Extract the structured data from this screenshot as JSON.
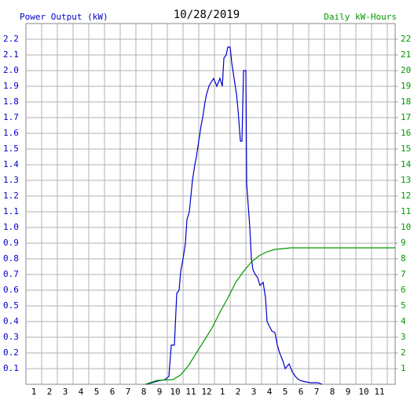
{
  "chart_data": {
    "type": "line",
    "title": "10/28/2019",
    "ylabel": "Power Output (kW)",
    "y2label": "Daily kW-Hours",
    "xlim": [
      0,
      23.5
    ],
    "ylim": [
      0,
      2.3
    ],
    "y2lim": [
      0,
      23
    ],
    "xticks": [
      1,
      2,
      3,
      4,
      5,
      6,
      7,
      8,
      9,
      10,
      11,
      12,
      {
        "value": 13,
        "label": "1"
      },
      {
        "value": 14,
        "label": "2"
      },
      {
        "value": 15,
        "label": "3"
      },
      {
        "value": 16,
        "label": "4"
      },
      {
        "value": 17,
        "label": "5"
      },
      {
        "value": 18,
        "label": "6"
      },
      {
        "value": 19,
        "label": "7"
      },
      {
        "value": 20,
        "label": "8"
      },
      {
        "value": 21,
        "label": "9"
      },
      {
        "value": 22,
        "label": "10"
      },
      {
        "value": 23,
        "label": "11"
      }
    ],
    "yticks": [
      0.1,
      0.2,
      0.3,
      0.4,
      0.5,
      0.6,
      0.7,
      0.8,
      0.9,
      {
        "value": 1,
        "label": "1.0"
      },
      1.1,
      1.2,
      1.3,
      1.4,
      1.5,
      1.6,
      1.7,
      1.8,
      1.9,
      {
        "value": 2,
        "label": "2.0"
      },
      2.1,
      2.2
    ],
    "y2ticks": [
      1,
      2,
      3,
      4,
      5,
      6,
      7,
      8,
      9,
      10,
      11,
      12,
      13,
      14,
      15,
      16,
      17,
      18,
      19,
      20,
      21,
      22
    ],
    "grid": true,
    "series": [
      {
        "color": "#0000cc",
        "x": [
          7.6,
          7.85,
          8.35,
          8.85,
          9.1,
          9.25,
          9.45,
          9.6,
          9.75,
          9.85,
          10.0,
          10.15,
          10.25,
          10.4,
          10.5,
          10.6,
          10.75,
          10.85,
          11.0,
          11.15,
          11.25,
          11.4,
          11.5,
          11.65,
          11.75,
          11.95,
          12.15,
          12.35,
          12.5,
          12.6,
          12.75,
          12.85,
          13.0,
          13.1,
          13.25,
          13.4,
          13.5,
          13.65,
          13.75,
          13.85,
          14.0,
          14.05,
          14.25,
          14.35,
          14.45,
          14.6,
          14.75,
          14.9,
          15.1,
          15.25,
          15.35,
          15.5,
          15.65,
          15.85,
          16.0,
          16.15,
          16.35,
          16.5,
          16.75,
          16.95,
          17.15,
          17.35,
          17.6,
          18.1,
          18.6,
          18.85
        ],
        "values": [
          0,
          0.005,
          0.02,
          0.03,
          0.05,
          0.25,
          0.25,
          0.58,
          0.6,
          0.72,
          0.8,
          0.9,
          1.05,
          1.1,
          1.2,
          1.3,
          1.4,
          1.45,
          1.55,
          1.65,
          1.7,
          1.8,
          1.85,
          1.9,
          1.92,
          1.95,
          1.9,
          1.95,
          1.9,
          2.08,
          2.1,
          2.15,
          2.15,
          2.05,
          1.95,
          1.85,
          1.75,
          1.55,
          1.55,
          2.0,
          2.0,
          1.28,
          1.0,
          0.8,
          0.73,
          0.7,
          0.68,
          0.63,
          0.65,
          0.55,
          0.4,
          0.37,
          0.34,
          0.33,
          0.25,
          0.2,
          0.15,
          0.1,
          0.13,
          0.08,
          0.05,
          0.03,
          0.02,
          0.01,
          0.01,
          0
        ]
      },
      {
        "color": "#009900",
        "axis": "y2",
        "x": [
          7.6,
          8.35,
          9.35,
          9.85,
          10.35,
          10.85,
          11.35,
          11.85,
          12.35,
          12.85,
          13.35,
          13.85,
          14.35,
          14.85,
          15.35,
          15.85,
          16.35,
          16.85,
          23.5
        ],
        "values": [
          0,
          0.25,
          0.3,
          0.6,
          1.2,
          2.0,
          2.8,
          3.6,
          4.6,
          5.5,
          6.5,
          7.2,
          7.8,
          8.2,
          8.45,
          8.6,
          8.65,
          8.7,
          8.7
        ]
      }
    ]
  }
}
